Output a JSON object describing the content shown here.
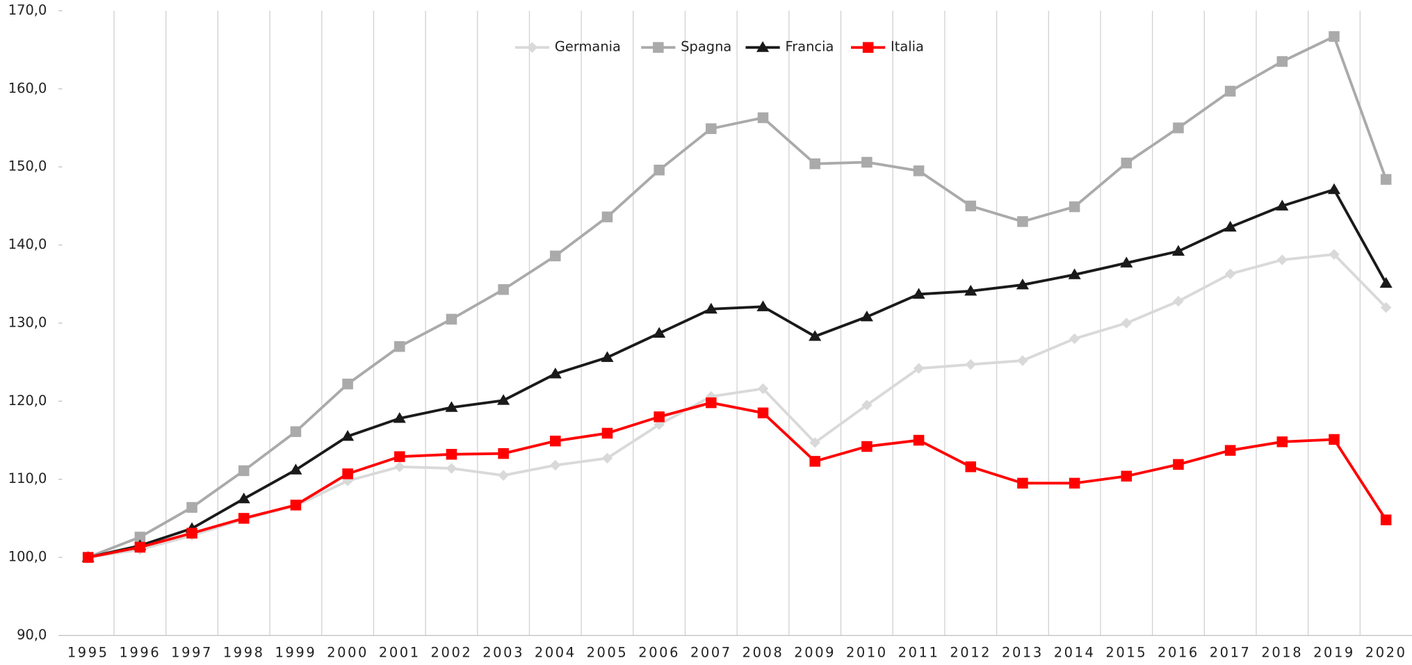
{
  "chart_data": {
    "type": "line",
    "categories": [
      "1995",
      "1996",
      "1997",
      "1998",
      "1999",
      "2000",
      "2001",
      "2002",
      "2003",
      "2004",
      "2005",
      "2006",
      "2007",
      "2008",
      "2009",
      "2010",
      "2011",
      "2012",
      "2013",
      "2014",
      "2015",
      "2016",
      "2017",
      "2018",
      "2019",
      "2020"
    ],
    "series": [
      {
        "name": "Germania",
        "color": "#d9d9d9",
        "marker": "diamond",
        "values": [
          100.0,
          101.0,
          102.8,
          104.9,
          106.6,
          109.8,
          111.6,
          111.4,
          110.5,
          111.8,
          112.7,
          117.0,
          120.6,
          121.6,
          114.7,
          119.5,
          124.2,
          124.7,
          125.2,
          128.0,
          130.0,
          132.8,
          136.3,
          138.1,
          138.8,
          132.0
        ]
      },
      {
        "name": "Spagna",
        "color": "#aaaaaa",
        "marker": "square",
        "values": [
          100.0,
          102.6,
          106.4,
          111.1,
          116.1,
          122.2,
          127.0,
          130.5,
          134.3,
          138.6,
          143.6,
          149.6,
          154.9,
          156.3,
          150.4,
          150.6,
          149.5,
          145.0,
          143.0,
          144.9,
          150.5,
          155.0,
          159.7,
          163.5,
          166.7,
          148.4
        ]
      },
      {
        "name": "Francia",
        "color": "#1a1a1a",
        "marker": "triangle",
        "values": [
          100.0,
          101.5,
          103.7,
          107.5,
          111.2,
          115.5,
          117.8,
          119.2,
          120.1,
          123.5,
          125.6,
          128.7,
          131.8,
          132.1,
          128.3,
          130.8,
          133.7,
          134.1,
          134.9,
          136.2,
          137.7,
          139.2,
          142.3,
          145.0,
          147.1,
          135.1
        ]
      },
      {
        "name": "Italia",
        "color": "#ff0000",
        "marker": "square",
        "values": [
          100.0,
          101.3,
          103.1,
          105.0,
          106.7,
          110.7,
          112.9,
          113.2,
          113.3,
          114.9,
          115.9,
          118.0,
          119.8,
          118.5,
          112.3,
          114.2,
          115.0,
          111.6,
          109.5,
          109.5,
          110.4,
          111.9,
          113.7,
          114.8,
          115.1,
          104.8
        ]
      }
    ],
    "ylim": [
      90,
      170
    ],
    "yticks": [
      {
        "value": 90,
        "label": "90,0"
      },
      {
        "value": 100,
        "label": "100,0"
      },
      {
        "value": 110,
        "label": "110,0"
      },
      {
        "value": 120,
        "label": "120,0"
      },
      {
        "value": 130,
        "label": "130,0"
      },
      {
        "value": 140,
        "label": "140,0"
      },
      {
        "value": 150,
        "label": "150,0"
      },
      {
        "value": 160,
        "label": "160,0"
      },
      {
        "value": 170,
        "label": "170,0"
      }
    ],
    "legend": "top"
  }
}
